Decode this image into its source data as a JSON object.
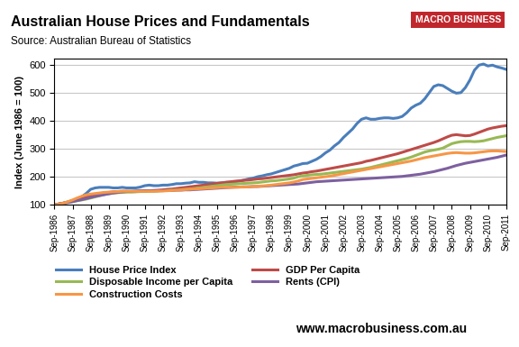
{
  "chart_data": {
    "type": "line",
    "title": "Australian House Prices and Fundamentals",
    "subtitle": "Source: Australian Bureau of Statistics",
    "y_label": "Index (June 1986 = 100)",
    "annotations": [
      "MACRO BUSINESS",
      "www.macrobusiness.com.au"
    ],
    "categories": [
      "Sep-1986",
      null,
      null,
      null,
      "Sep-1987",
      null,
      null,
      null,
      "Sep-1988",
      null,
      null,
      null,
      "Sep-1989",
      null,
      null,
      null,
      "Sep-1990",
      null,
      null,
      null,
      "Sep-1991",
      null,
      null,
      null,
      "Sep-1992",
      null,
      null,
      null,
      "Sep-1993",
      null,
      null,
      null,
      "Sep-1994",
      null,
      null,
      null,
      "Sep-1995",
      null,
      null,
      null,
      "Sep-1996",
      null,
      null,
      null,
      "Sep-1997",
      null,
      null,
      null,
      "Sep-1998",
      null,
      null,
      null,
      "Sep-1999",
      null,
      null,
      null,
      "Sep-2000",
      null,
      null,
      null,
      "Sep-2001",
      null,
      null,
      null,
      "Sep-2002",
      null,
      null,
      null,
      "Sep-2003",
      null,
      null,
      null,
      "Sep-2004",
      null,
      null,
      null,
      "Sep-2005",
      null,
      null,
      null,
      "Sep-2006",
      null,
      null,
      null,
      "Sep-2007",
      null,
      null,
      null,
      "Sep-2008",
      null,
      null,
      null,
      "Sep-2009",
      null,
      null,
      null,
      "Sep-2010",
      null,
      null,
      null,
      "Sep-2011"
    ],
    "series": [
      {
        "name": "House Price Index",
        "color": "#4a7ebb",
        "values": [
          100,
          103,
          106,
          110,
          115,
          120,
          128,
          140,
          155,
          160,
          162,
          162,
          162,
          160,
          160,
          162,
          160,
          160,
          160,
          163,
          168,
          170,
          168,
          168,
          170,
          170,
          172,
          175,
          175,
          177,
          178,
          182,
          180,
          180,
          178,
          178,
          177,
          178,
          180,
          180,
          182,
          185,
          188,
          192,
          195,
          200,
          203,
          207,
          210,
          215,
          220,
          225,
          230,
          238,
          242,
          247,
          248,
          255,
          262,
          272,
          285,
          295,
          310,
          322,
          340,
          355,
          370,
          390,
          405,
          410,
          405,
          405,
          408,
          410,
          410,
          408,
          410,
          415,
          428,
          445,
          455,
          462,
          478,
          500,
          522,
          528,
          525,
          515,
          505,
          498,
          500,
          518,
          545,
          580,
          598,
          602,
          595,
          598,
          592,
          588,
          583
        ]
      },
      {
        "name": "GDP Per Capita",
        "color": "#be4b48",
        "values": [
          100,
          103,
          106,
          110,
          114,
          118,
          122,
          127,
          132,
          136,
          139,
          142,
          144,
          146,
          147,
          148,
          148,
          147,
          147,
          148,
          149,
          150,
          151,
          152,
          153,
          155,
          156,
          158,
          160,
          162,
          164,
          166,
          168,
          170,
          172,
          174,
          176,
          178,
          180,
          182,
          184,
          185,
          187,
          188,
          190,
          192,
          193,
          195,
          197,
          199,
          201,
          203,
          205,
          207,
          210,
          213,
          215,
          218,
          220,
          223,
          226,
          229,
          232,
          235,
          238,
          241,
          244,
          247,
          250,
          255,
          258,
          262,
          266,
          270,
          274,
          278,
          282,
          287,
          292,
          297,
          302,
          307,
          312,
          317,
          322,
          328,
          335,
          342,
          348,
          350,
          348,
          346,
          347,
          352,
          358,
          364,
          370,
          374,
          377,
          380,
          382
        ]
      },
      {
        "name": "Disposable Income per Capita",
        "color": "#98b954",
        "values": [
          100,
          102,
          105,
          108,
          111,
          114,
          117,
          120,
          124,
          128,
          132,
          136,
          139,
          141,
          143,
          144,
          145,
          145,
          146,
          147,
          147,
          148,
          148,
          149,
          150,
          151,
          152,
          153,
          154,
          155,
          156,
          158,
          160,
          162,
          164,
          166,
          168,
          170,
          172,
          173,
          174,
          175,
          176,
          177,
          178,
          179,
          181,
          183,
          185,
          186,
          188,
          190,
          192,
          195,
          200,
          203,
          205,
          207,
          208,
          209,
          211,
          213,
          215,
          217,
          219,
          221,
          223,
          225,
          227,
          230,
          233,
          237,
          241,
          245,
          249,
          253,
          257,
          261,
          265,
          270,
          276,
          282,
          288,
          292,
          295,
          298,
          302,
          310,
          318,
          322,
          325,
          326,
          326,
          325,
          326,
          328,
          332,
          336,
          340,
          343,
          346
        ]
      },
      {
        "name": "Rents (CPI)",
        "color": "#7d60a0",
        "values": [
          100,
          102,
          105,
          108,
          111,
          115,
          118,
          122,
          126,
          130,
          133,
          136,
          139,
          142,
          144,
          146,
          147,
          148,
          149,
          150,
          150,
          150,
          150,
          150,
          151,
          151,
          151,
          152,
          152,
          153,
          153,
          154,
          155,
          156,
          157,
          158,
          159,
          160,
          161,
          162,
          163,
          163,
          164,
          164,
          165,
          165,
          166,
          167,
          168,
          169,
          170,
          171,
          172,
          173,
          174,
          176,
          178,
          180,
          182,
          183,
          184,
          185,
          186,
          187,
          188,
          189,
          190,
          191,
          192,
          193,
          194,
          195,
          196,
          197,
          198,
          199,
          200,
          201,
          203,
          205,
          207,
          209,
          212,
          215,
          218,
          222,
          226,
          230,
          235,
          240,
          244,
          248,
          251,
          254,
          257,
          260,
          263,
          266,
          269,
          273,
          277
        ]
      },
      {
        "name": "Construction Costs",
        "color": "#f79646",
        "values": [
          100,
          102,
          106,
          111,
          117,
          124,
          130,
          135,
          138,
          140,
          142,
          144,
          145,
          146,
          147,
          148,
          148,
          148,
          148,
          148,
          148,
          148,
          148,
          149,
          149,
          150,
          151,
          152,
          153,
          154,
          155,
          156,
          157,
          158,
          159,
          160,
          161,
          162,
          162,
          162,
          162,
          163,
          163,
          164,
          165,
          166,
          167,
          168,
          170,
          172,
          174,
          176,
          178,
          181,
          185,
          190,
          192,
          194,
          196,
          198,
          200,
          202,
          205,
          208,
          211,
          214,
          217,
          220,
          223,
          226,
          229,
          232,
          235,
          238,
          241,
          244,
          247,
          250,
          253,
          256,
          260,
          264,
          268,
          271,
          274,
          277,
          280,
          283,
          285,
          286,
          285,
          284,
          284,
          285,
          287,
          289,
          291,
          292,
          292,
          291,
          290
        ]
      }
    ],
    "ylim": [
      100,
      620
    ],
    "yticks": [
      100,
      200,
      300,
      400,
      500,
      600
    ],
    "grid": true,
    "legend": "below"
  }
}
